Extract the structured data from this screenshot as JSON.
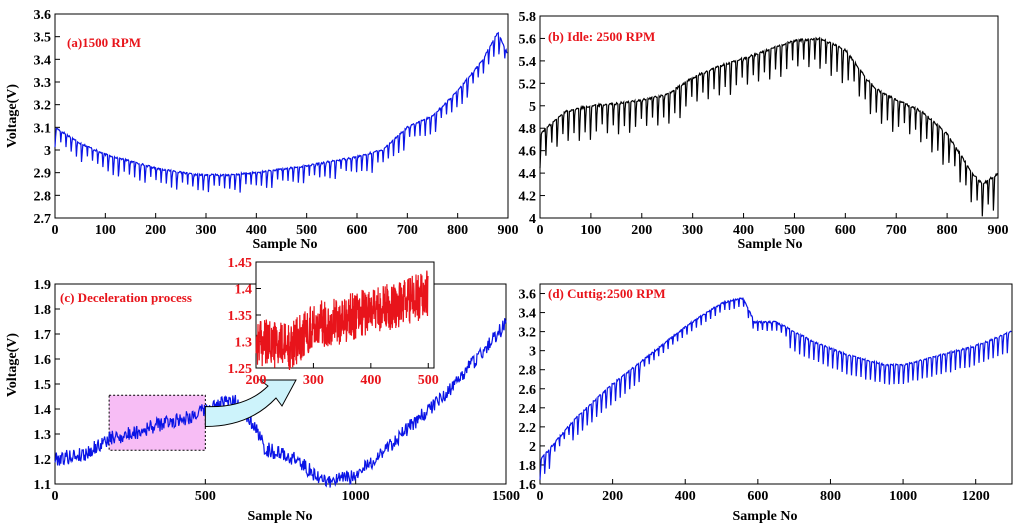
{
  "colors": {
    "series_blue": "#0a14e6",
    "series_black": "#000000",
    "series_red": "#e8141b",
    "label_red": "#e8141b",
    "zoom_fill": "#f7bdf5",
    "arrow_fill": "#cdf3fb"
  },
  "chart_data": [
    {
      "id": "a",
      "type": "line",
      "label": "(a)1500 RPM",
      "xlabel": "Sample No",
      "ylabel": "Voltage(V)",
      "xlim": [
        0,
        900
      ],
      "ylim": [
        2.7,
        3.6
      ],
      "xticks": [
        "0",
        "100",
        "200",
        "300",
        "400",
        "500",
        "600",
        "700",
        "800",
        "900"
      ],
      "yticks": [
        "2.7",
        "2.8",
        "2.9",
        "3",
        "3.1",
        "3.2",
        "3.3",
        "3.4",
        "3.5",
        "3.6"
      ],
      "series_color": "series_blue",
      "trend": [
        [
          0,
          3.1
        ],
        [
          50,
          3.03
        ],
        [
          100,
          2.98
        ],
        [
          150,
          2.95
        ],
        [
          200,
          2.92
        ],
        [
          280,
          2.89
        ],
        [
          350,
          2.89
        ],
        [
          400,
          2.9
        ],
        [
          500,
          2.93
        ],
        [
          600,
          2.97
        ],
        [
          650,
          3.0
        ],
        [
          700,
          3.1
        ],
        [
          750,
          3.15
        ],
        [
          800,
          3.26
        ],
        [
          850,
          3.4
        ],
        [
          880,
          3.52
        ],
        [
          900,
          3.42
        ]
      ],
      "cycle_period": 10.5,
      "cycle_dip": 0.085,
      "jitter": 0.004
    },
    {
      "id": "b",
      "type": "line",
      "label": "(b) Idle: 2500 RPM",
      "xlabel": "Sample No",
      "ylabel": "",
      "xlim": [
        0,
        900
      ],
      "ylim": [
        4,
        5.8
      ],
      "xticks": [
        "0",
        "100",
        "200",
        "300",
        "400",
        "500",
        "600",
        "700",
        "800",
        "900"
      ],
      "yticks": [
        "4",
        "4.2",
        "4.4",
        "4.6",
        "4.8",
        "5",
        "5.2",
        "5.4",
        "5.6",
        "5.8"
      ],
      "series_color": "series_black",
      "trend": [
        [
          0,
          4.75
        ],
        [
          50,
          4.95
        ],
        [
          100,
          5.0
        ],
        [
          150,
          5.02
        ],
        [
          200,
          5.05
        ],
        [
          250,
          5.1
        ],
        [
          300,
          5.25
        ],
        [
          350,
          5.35
        ],
        [
          400,
          5.42
        ],
        [
          450,
          5.5
        ],
        [
          500,
          5.58
        ],
        [
          550,
          5.6
        ],
        [
          600,
          5.5
        ],
        [
          640,
          5.25
        ],
        [
          660,
          5.15
        ],
        [
          700,
          5.05
        ],
        [
          750,
          4.95
        ],
        [
          800,
          4.75
        ],
        [
          850,
          4.4
        ],
        [
          870,
          4.3
        ],
        [
          900,
          4.4
        ]
      ],
      "cycle_period": 11,
      "cycle_dip": 0.3,
      "jitter": 0.01
    },
    {
      "id": "c",
      "type": "line",
      "label": "(c) Deceleration process",
      "xlabel": "Sample No",
      "ylabel": "Voltage(V)",
      "xlim": [
        0,
        1500
      ],
      "ylim": [
        1.1,
        1.9
      ],
      "xticks": [
        "0",
        "500",
        "1000",
        "1500"
      ],
      "yticks": [
        "1.1",
        "1.2",
        "1.3",
        "1.4",
        "1.5",
        "1.6",
        "1.7",
        "1.8",
        "1.9"
      ],
      "series_color": "series_blue",
      "trend": [
        [
          0,
          1.2
        ],
        [
          100,
          1.22
        ],
        [
          180,
          1.28
        ],
        [
          250,
          1.3
        ],
        [
          350,
          1.34
        ],
        [
          450,
          1.37
        ],
        [
          550,
          1.42
        ],
        [
          600,
          1.43
        ],
        [
          650,
          1.36
        ],
        [
          700,
          1.24
        ],
        [
          800,
          1.2
        ],
        [
          850,
          1.15
        ],
        [
          900,
          1.11
        ],
        [
          1000,
          1.13
        ],
        [
          1100,
          1.24
        ],
        [
          1200,
          1.35
        ],
        [
          1300,
          1.46
        ],
        [
          1400,
          1.6
        ],
        [
          1500,
          1.74
        ]
      ],
      "cycle_period": 0,
      "cycle_dip": 0,
      "jitter": 0.03,
      "zoom_region": {
        "x": [
          180,
          500
        ],
        "y": [
          1.235,
          1.455
        ]
      },
      "inset": {
        "xlim": [
          200,
          510
        ],
        "ylim": [
          1.25,
          1.45
        ],
        "xticks": [
          "200",
          "300",
          "400",
          "500"
        ],
        "yticks": [
          "1.25",
          "1.3",
          "1.35",
          "1.4",
          "1.45"
        ],
        "series_color": "series_red",
        "trend": [
          [
            200,
            1.3
          ],
          [
            260,
            1.29
          ],
          [
            300,
            1.33
          ],
          [
            350,
            1.34
          ],
          [
            400,
            1.36
          ],
          [
            450,
            1.37
          ],
          [
            500,
            1.39
          ]
        ],
        "jitter": 0.045
      }
    },
    {
      "id": "d",
      "type": "line",
      "label": "(d) Cuttig:2500 RPM",
      "xlabel": "Sample No",
      "ylabel": "",
      "xlim": [
        0,
        1300
      ],
      "ylim": [
        1.6,
        3.7
      ],
      "xticks": [
        "0",
        "200",
        "400",
        "600",
        "800",
        "1000",
        "1200"
      ],
      "yticks": [
        "1.6",
        "1.8",
        "2",
        "2.2",
        "2.4",
        "2.6",
        "2.8",
        "3",
        "3.2",
        "3.4",
        "3.6"
      ],
      "series_color": "series_blue",
      "trend": [
        [
          0,
          1.85
        ],
        [
          100,
          2.3
        ],
        [
          200,
          2.65
        ],
        [
          300,
          2.95
        ],
        [
          400,
          3.25
        ],
        [
          500,
          3.5
        ],
        [
          560,
          3.55
        ],
        [
          590,
          3.3
        ],
        [
          650,
          3.3
        ],
        [
          750,
          3.1
        ],
        [
          850,
          2.95
        ],
        [
          950,
          2.85
        ],
        [
          1000,
          2.85
        ],
        [
          1100,
          2.95
        ],
        [
          1200,
          3.05
        ],
        [
          1300,
          3.2
        ]
      ],
      "cycle_period": 13,
      "cycle_dip": 0.2,
      "jitter": 0.01
    }
  ]
}
